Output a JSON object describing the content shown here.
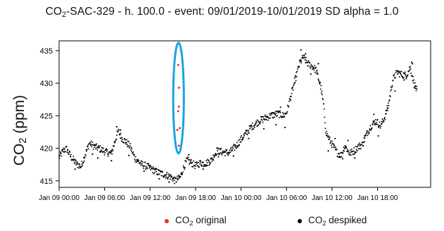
{
  "header": {
    "title_prefix": "CO",
    "title_sub": "2",
    "title_suffix": "-SAC-329 - h. 100.0 - event: 09/01/2019-10/01/2019 SD alpha = 1.0"
  },
  "axes": {
    "ylabel_prefix": "CO",
    "ylabel_sub": "2",
    "ylabel_suffix": " (ppm)"
  },
  "legend": {
    "placement": "bottom",
    "original_prefix": "CO",
    "original_sub": "2",
    "original_suffix": " original",
    "despiked_prefix": "CO",
    "despiked_sub": "2",
    "despiked_suffix": " despiked"
  },
  "colors": {
    "original": "#e8312a",
    "despiked": "#000000",
    "highlight": "#1ba3e0",
    "axis": "#000000"
  },
  "chart_data": {
    "type": "scatter",
    "x_unit": "hours since Jan 09 00:00",
    "xlim": [
      0,
      49
    ],
    "ylim": [
      414,
      436.5
    ],
    "x_ticks": [
      0,
      6,
      12,
      18,
      24,
      30,
      36,
      42
    ],
    "x_tick_labels": [
      "Jan 09 00:00",
      "Jan 09 06:00",
      "Jan 09 12:00",
      "Jan 09 18:00",
      "Jan 10 00:00",
      "Jan 10 06:00",
      "Jan 10 12:00",
      "Jan 10 18:00"
    ],
    "y_ticks": [
      415,
      420,
      425,
      430,
      435
    ],
    "y_tick_labels": [
      "415",
      "420",
      "425",
      "430",
      "435"
    ],
    "grid": false,
    "series": [
      {
        "name": "CO2 despiked",
        "color": "#000000",
        "trace": [
          [
            0.0,
            418.6
          ],
          [
            0.6,
            419.7
          ],
          [
            1.0,
            419.9
          ],
          [
            1.5,
            418.8
          ],
          [
            2.3,
            417.6
          ],
          [
            2.9,
            417.2
          ],
          [
            3.5,
            419.2
          ],
          [
            4.0,
            420.8
          ],
          [
            4.6,
            420.3
          ],
          [
            5.4,
            419.9
          ],
          [
            6.2,
            419.4
          ],
          [
            6.9,
            419.2
          ],
          [
            7.4,
            421.2
          ],
          [
            7.8,
            422.6
          ],
          [
            8.3,
            421.5
          ],
          [
            8.8,
            421.0
          ],
          [
            9.4,
            420.2
          ],
          [
            10.0,
            418.5
          ],
          [
            10.8,
            417.6
          ],
          [
            11.8,
            417.1
          ],
          [
            12.8,
            416.4
          ],
          [
            13.8,
            416.0
          ],
          [
            14.8,
            415.6
          ],
          [
            15.3,
            415.0
          ],
          [
            15.7,
            415.3
          ],
          [
            16.0,
            415.6
          ],
          [
            16.4,
            417.0
          ],
          [
            16.9,
            418.2
          ],
          [
            17.4,
            417.8
          ],
          [
            18.0,
            417.3
          ],
          [
            18.6,
            417.7
          ],
          [
            19.4,
            417.7
          ],
          [
            20.1,
            418.2
          ],
          [
            20.8,
            419.6
          ],
          [
            21.6,
            419.4
          ],
          [
            22.4,
            419.3
          ],
          [
            23.4,
            420.4
          ],
          [
            24.3,
            421.8
          ],
          [
            25.3,
            423.2
          ],
          [
            26.4,
            424.2
          ],
          [
            27.3,
            424.7
          ],
          [
            28.1,
            425.1
          ],
          [
            28.9,
            425.3
          ],
          [
            29.6,
            425.0
          ],
          [
            30.0,
            425.5
          ],
          [
            30.8,
            429.0
          ],
          [
            31.3,
            431.2
          ],
          [
            31.7,
            433.0
          ],
          [
            32.2,
            434.0
          ],
          [
            32.8,
            433.0
          ],
          [
            33.4,
            432.6
          ],
          [
            33.9,
            432.0
          ],
          [
            34.5,
            429.5
          ],
          [
            34.9,
            426.5
          ],
          [
            35.2,
            422.5
          ],
          [
            35.7,
            421.2
          ],
          [
            36.2,
            420.2
          ],
          [
            36.7,
            419.3
          ],
          [
            37.2,
            418.9
          ],
          [
            37.7,
            420.4
          ],
          [
            38.3,
            419.2
          ],
          [
            38.9,
            419.6
          ],
          [
            39.5,
            420.3
          ],
          [
            40.0,
            420.6
          ],
          [
            40.6,
            422.3
          ],
          [
            41.2,
            423.5
          ],
          [
            41.8,
            424.2
          ],
          [
            42.4,
            423.4
          ],
          [
            43.0,
            424.9
          ],
          [
            43.5,
            427.0
          ],
          [
            44.0,
            430.5
          ],
          [
            44.6,
            431.7
          ],
          [
            45.2,
            431.3
          ],
          [
            45.8,
            431.2
          ],
          [
            46.3,
            432.4
          ],
          [
            46.8,
            430.0
          ],
          [
            47.2,
            428.8
          ]
        ],
        "points": [
          [
            2.1,
            416.8
          ],
          [
            4.4,
            419.1
          ],
          [
            5.1,
            418.5
          ],
          [
            6.9,
            418.1
          ],
          [
            7.6,
            423.3
          ],
          [
            8.1,
            422.8
          ],
          [
            9.2,
            418.9
          ],
          [
            11.2,
            416.5
          ],
          [
            13.2,
            415.3
          ],
          [
            14.5,
            414.8
          ],
          [
            17.1,
            419.0
          ],
          [
            19.0,
            416.8
          ],
          [
            21.0,
            418.7
          ],
          [
            23.0,
            418.8
          ],
          [
            25.0,
            421.5
          ],
          [
            27.0,
            423.0
          ],
          [
            28.6,
            423.6
          ],
          [
            29.2,
            426.3
          ],
          [
            29.8,
            423.2
          ],
          [
            31.1,
            430.1
          ],
          [
            31.9,
            435.1
          ],
          [
            32.5,
            434.5
          ],
          [
            33.2,
            431.4
          ],
          [
            34.2,
            433.0
          ],
          [
            35.5,
            419.6
          ],
          [
            36.4,
            421.5
          ],
          [
            37.4,
            418.4
          ],
          [
            38.1,
            421.2
          ],
          [
            39.0,
            418.5
          ],
          [
            40.3,
            421.9
          ],
          [
            41.5,
            425.2
          ],
          [
            42.1,
            421.9
          ],
          [
            43.3,
            425.8
          ],
          [
            44.3,
            428.8
          ],
          [
            45.5,
            430.5
          ],
          [
            46.5,
            433.2
          ],
          [
            46.6,
            433.0
          ],
          [
            47.0,
            429.5
          ]
        ]
      },
      {
        "name": "CO2 original",
        "color": "#e8312a",
        "points": [
          [
            15.7,
            432.8
          ],
          [
            15.8,
            429.3
          ],
          [
            15.8,
            426.4
          ],
          [
            15.7,
            425.7
          ],
          [
            15.9,
            423.1
          ],
          [
            15.6,
            422.8
          ],
          [
            15.8,
            420.4
          ]
        ]
      }
    ],
    "annotation": {
      "shape": "ellipse",
      "color": "#1ba3e0",
      "x_center": 15.75,
      "x_halfwidth": 0.7,
      "y_range": [
        419.2,
        436.2
      ]
    }
  }
}
